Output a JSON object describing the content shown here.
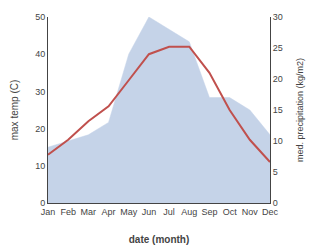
{
  "chart_data": {
    "type": "line",
    "categories": [
      "Jan",
      "Feb",
      "Mar",
      "Apr",
      "May",
      "Jun",
      "Jul",
      "Aug",
      "Sep",
      "Oct",
      "Nov",
      "Dec"
    ],
    "series": [
      {
        "type": "area",
        "color": "#c5d3e8",
        "axis": "y2",
        "values": [
          9,
          10,
          11,
          13,
          24,
          30,
          28,
          26,
          17,
          17,
          15,
          11
        ]
      },
      {
        "type": "line",
        "color": "#c0504d",
        "values": [
          13,
          17,
          22,
          26,
          33,
          40,
          42,
          42,
          35,
          25,
          17,
          11
        ]
      }
    ],
    "xlabel": "date (month)",
    "ylabel": "max temp (C)",
    "y2label": "med. precipitation (kg/m2)",
    "ylim": [
      0,
      50
    ],
    "yticks": [
      0,
      10,
      20,
      30,
      40,
      50
    ],
    "y2lim": [
      0,
      30
    ],
    "y2ticks": [
      0,
      5,
      10,
      15,
      20,
      25,
      30
    ],
    "grid": false
  }
}
